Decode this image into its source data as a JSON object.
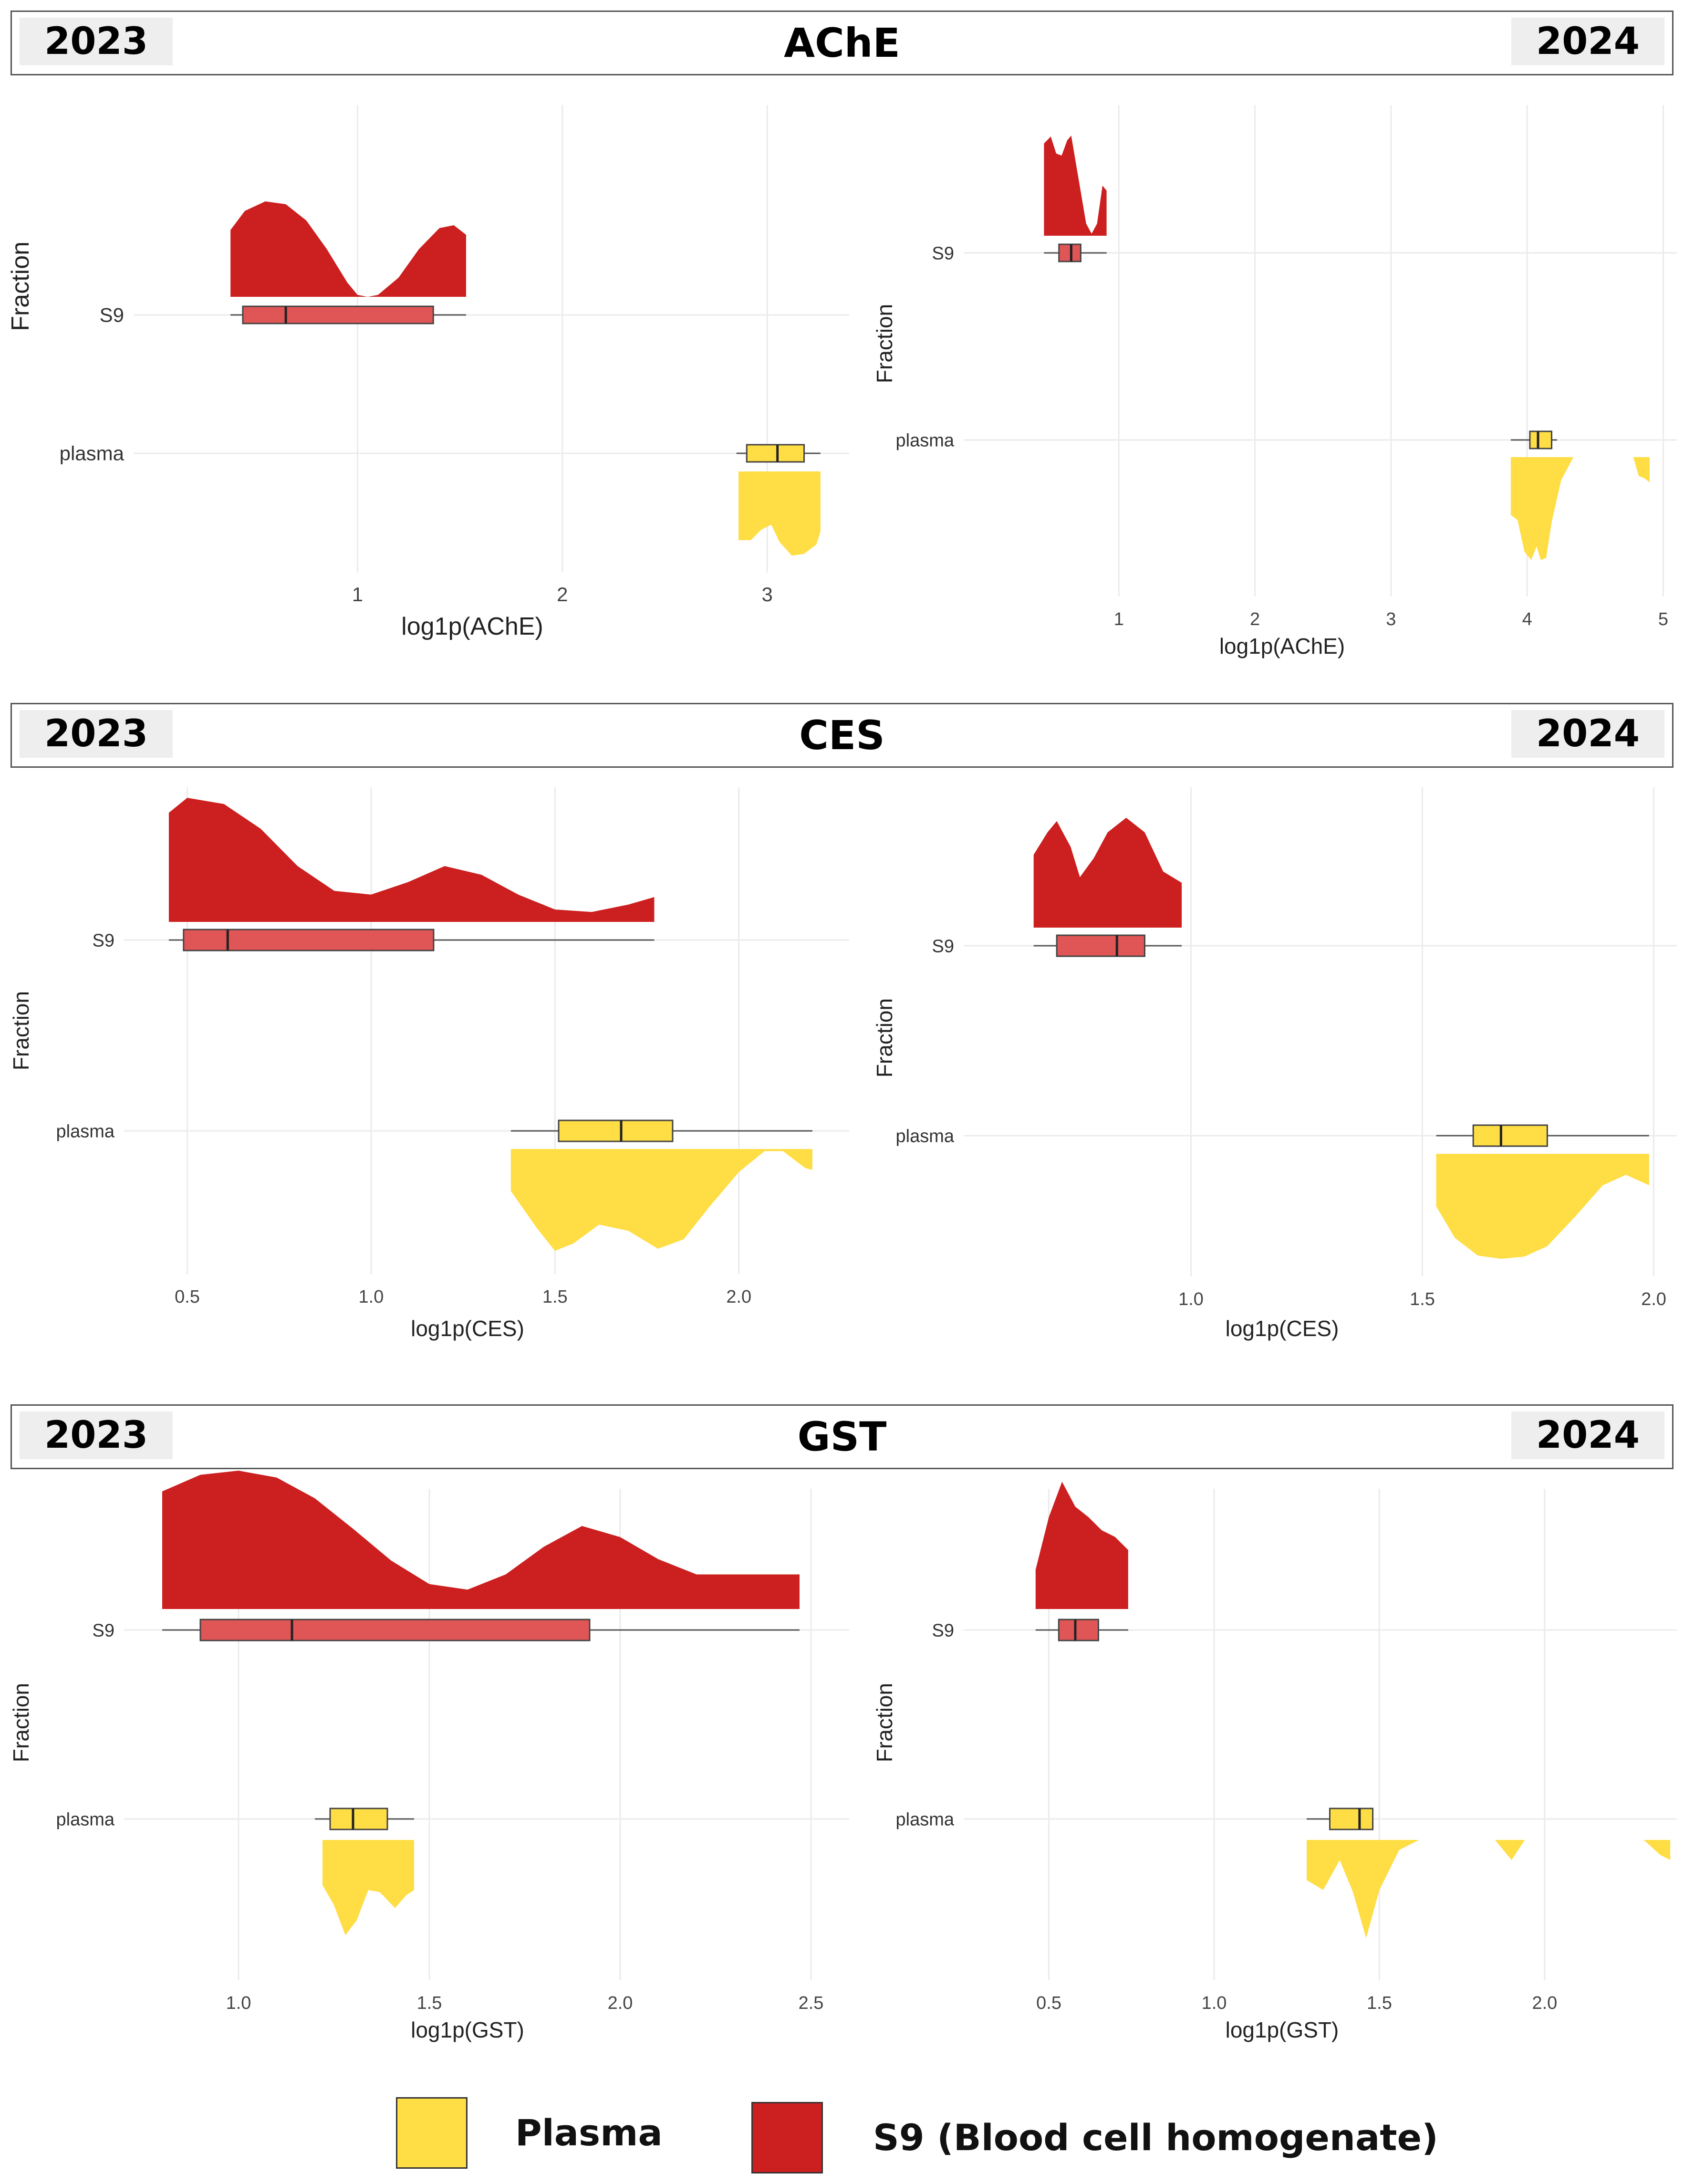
{
  "colors": {
    "plasma": "#FFDD44",
    "s9_density": "#CC1F1F",
    "s9_box": "#E05555",
    "whisker": "#555555",
    "grid": "#ebebeb"
  },
  "legend": {
    "plasma_label": "Plasma",
    "s9_label": "S9 (Blood cell homogenate)"
  },
  "chart_data": [
    {
      "panel": "ache-2023",
      "header": "AChE",
      "year_left": "2023",
      "year_right": "2024",
      "type": "raincloud",
      "xlabel": "log1p(AChE)",
      "ylabel": "Fraction",
      "xlim": [
        0.0,
        3.4
      ],
      "xticks": [
        1,
        2,
        3
      ],
      "tick_labels": [
        "1",
        "2",
        "3"
      ],
      "categories": [
        "S9",
        "plasma"
      ],
      "series": [
        {
          "name": "S9",
          "whisker": [
            0.38,
            1.53
          ],
          "box": [
            0.44,
            1.37
          ],
          "median": 0.65,
          "density": [
            [
              0.38,
              0.7
            ],
            [
              0.45,
              0.9
            ],
            [
              0.55,
              1.0
            ],
            [
              0.65,
              0.97
            ],
            [
              0.75,
              0.8
            ],
            [
              0.85,
              0.5
            ],
            [
              0.95,
              0.15
            ],
            [
              1.0,
              0.02
            ],
            [
              1.05,
              0.0
            ],
            [
              1.1,
              0.02
            ],
            [
              1.2,
              0.2
            ],
            [
              1.3,
              0.5
            ],
            [
              1.4,
              0.72
            ],
            [
              1.47,
              0.75
            ],
            [
              1.53,
              0.65
            ]
          ]
        },
        {
          "name": "plasma",
          "whisker": [
            2.85,
            3.26
          ],
          "box": [
            2.9,
            3.18
          ],
          "median": 3.05,
          "density": [
            [
              2.86,
              0.8
            ],
            [
              2.92,
              0.8
            ],
            [
              2.97,
              0.68
            ],
            [
              3.02,
              0.62
            ],
            [
              3.06,
              0.82
            ],
            [
              3.12,
              0.98
            ],
            [
              3.18,
              0.96
            ],
            [
              3.24,
              0.85
            ],
            [
              3.26,
              0.7
            ]
          ]
        }
      ]
    },
    {
      "panel": "ache-2024",
      "type": "raincloud",
      "xlabel": "log1p(AChE)",
      "ylabel": "Fraction",
      "xlim": [
        0.0,
        5.1
      ],
      "xticks": [
        1,
        2,
        3,
        4,
        5
      ],
      "tick_labels": [
        "1",
        "2",
        "3",
        "4",
        "5"
      ],
      "categories": [
        "S9",
        "plasma"
      ],
      "series": [
        {
          "name": "S9",
          "whisker": [
            0.45,
            0.91
          ],
          "box": [
            0.56,
            0.72
          ],
          "median": 0.65,
          "density": [
            [
              0.45,
              0.92
            ],
            [
              0.5,
              0.99
            ],
            [
              0.54,
              0.82
            ],
            [
              0.58,
              0.8
            ],
            [
              0.62,
              0.95
            ],
            [
              0.65,
              1.0
            ],
            [
              0.7,
              0.6
            ],
            [
              0.76,
              0.12
            ],
            [
              0.8,
              0.02
            ],
            [
              0.84,
              0.12
            ],
            [
              0.88,
              0.5
            ],
            [
              0.91,
              0.45
            ]
          ]
        },
        {
          "name": "plasma",
          "whisker": [
            3.88,
            4.22
          ],
          "box": [
            4.02,
            4.18
          ],
          "median": 4.08,
          "density": [
            [
              3.88,
              0.55
            ],
            [
              3.93,
              0.6
            ],
            [
              3.98,
              0.9
            ],
            [
              4.03,
              0.98
            ],
            [
              4.07,
              0.85
            ],
            [
              4.1,
              0.98
            ],
            [
              4.14,
              0.96
            ],
            [
              4.18,
              0.62
            ],
            [
              4.25,
              0.22
            ],
            [
              4.34,
              0.0
            ],
            [
              4.45,
              0.0
            ],
            [
              4.78,
              0.0
            ],
            [
              4.82,
              0.18
            ],
            [
              4.86,
              0.2
            ],
            [
              4.9,
              0.24
            ]
          ]
        }
      ]
    },
    {
      "panel": "ces-2023",
      "header": "CES",
      "year_left": "2023",
      "year_right": "2024",
      "type": "raincloud",
      "xlabel": "log1p(CES)",
      "ylabel": "Fraction",
      "xlim": [
        0.38,
        2.3
      ],
      "xticks": [
        0.5,
        1.0,
        1.5,
        2.0
      ],
      "tick_labels": [
        "0.5",
        "1.0",
        "1.5",
        "2.0"
      ],
      "categories": [
        "S9",
        "plasma"
      ],
      "series": [
        {
          "name": "S9",
          "whisker": [
            0.45,
            1.77
          ],
          "box": [
            0.49,
            1.17
          ],
          "median": 0.61,
          "density": [
            [
              0.45,
              0.88
            ],
            [
              0.5,
              1.0
            ],
            [
              0.6,
              0.95
            ],
            [
              0.7,
              0.75
            ],
            [
              0.8,
              0.45
            ],
            [
              0.9,
              0.25
            ],
            [
              1.0,
              0.22
            ],
            [
              1.1,
              0.32
            ],
            [
              1.2,
              0.45
            ],
            [
              1.3,
              0.38
            ],
            [
              1.4,
              0.22
            ],
            [
              1.5,
              0.1
            ],
            [
              1.6,
              0.08
            ],
            [
              1.7,
              0.14
            ],
            [
              1.77,
              0.2
            ]
          ]
        },
        {
          "name": "plasma",
          "whisker": [
            1.38,
            2.2
          ],
          "box": [
            1.51,
            1.82
          ],
          "median": 1.68,
          "density": [
            [
              1.38,
              0.4
            ],
            [
              1.45,
              0.75
            ],
            [
              1.5,
              0.97
            ],
            [
              1.55,
              0.9
            ],
            [
              1.62,
              0.72
            ],
            [
              1.7,
              0.78
            ],
            [
              1.78,
              0.95
            ],
            [
              1.85,
              0.86
            ],
            [
              1.92,
              0.55
            ],
            [
              2.0,
              0.22
            ],
            [
              2.07,
              0.02
            ],
            [
              2.12,
              0.02
            ],
            [
              2.18,
              0.18
            ],
            [
              2.2,
              0.2
            ]
          ]
        }
      ]
    },
    {
      "panel": "ces-2024",
      "type": "raincloud",
      "xlabel": "log1p(CES)",
      "ylabel": "Fraction",
      "xlim": [
        0.55,
        2.05
      ],
      "xticks": [
        1.0,
        1.5,
        2.0
      ],
      "tick_labels": [
        "1.0",
        "1.5",
        "2.0"
      ],
      "categories": [
        "S9",
        "plasma"
      ],
      "series": [
        {
          "name": "S9",
          "whisker": [
            0.66,
            0.98
          ],
          "box": [
            0.71,
            0.9
          ],
          "median": 0.84,
          "density": [
            [
              0.66,
              0.65
            ],
            [
              0.69,
              0.85
            ],
            [
              0.71,
              0.95
            ],
            [
              0.74,
              0.72
            ],
            [
              0.76,
              0.45
            ],
            [
              0.79,
              0.62
            ],
            [
              0.82,
              0.85
            ],
            [
              0.86,
              0.98
            ],
            [
              0.9,
              0.85
            ],
            [
              0.94,
              0.5
            ],
            [
              0.98,
              0.4
            ]
          ]
        },
        {
          "name": "plasma",
          "whisker": [
            1.53,
            1.99
          ],
          "box": [
            1.61,
            1.77
          ],
          "median": 1.67,
          "density": [
            [
              1.53,
              0.5
            ],
            [
              1.57,
              0.8
            ],
            [
              1.62,
              0.97
            ],
            [
              1.67,
              1.0
            ],
            [
              1.72,
              0.98
            ],
            [
              1.77,
              0.88
            ],
            [
              1.83,
              0.6
            ],
            [
              1.89,
              0.3
            ],
            [
              1.94,
              0.2
            ],
            [
              1.99,
              0.3
            ]
          ]
        }
      ]
    },
    {
      "panel": "gst-2023",
      "header": "GST",
      "year_left": "2023",
      "year_right": "2024",
      "type": "raincloud",
      "xlabel": "log1p(GST)",
      "ylabel": "Fraction",
      "xlim": [
        0.75,
        2.6
      ],
      "xticks": [
        1.0,
        1.5,
        2.0,
        2.5
      ],
      "tick_labels": [
        "1.0",
        "1.5",
        "2.0",
        "2.5"
      ],
      "categories": [
        "S9",
        "plasma"
      ],
      "series": [
        {
          "name": "S9",
          "whisker": [
            0.8,
            2.47
          ],
          "box": [
            0.9,
            1.92
          ],
          "median": 1.14,
          "density": [
            [
              0.8,
              0.85
            ],
            [
              0.9,
              0.97
            ],
            [
              1.0,
              1.0
            ],
            [
              1.1,
              0.95
            ],
            [
              1.2,
              0.8
            ],
            [
              1.3,
              0.58
            ],
            [
              1.4,
              0.35
            ],
            [
              1.5,
              0.18
            ],
            [
              1.6,
              0.14
            ],
            [
              1.7,
              0.25
            ],
            [
              1.8,
              0.45
            ],
            [
              1.9,
              0.6
            ],
            [
              2.0,
              0.52
            ],
            [
              2.1,
              0.36
            ],
            [
              2.2,
              0.25
            ],
            [
              2.35,
              0.25
            ],
            [
              2.47,
              0.25
            ]
          ]
        },
        {
          "name": "plasma",
          "whisker": [
            1.2,
            1.46
          ],
          "box": [
            1.24,
            1.39
          ],
          "median": 1.3,
          "density": [
            [
              1.22,
              0.45
            ],
            [
              1.25,
              0.65
            ],
            [
              1.28,
              0.95
            ],
            [
              1.31,
              0.8
            ],
            [
              1.34,
              0.5
            ],
            [
              1.37,
              0.52
            ],
            [
              1.41,
              0.68
            ],
            [
              1.44,
              0.55
            ],
            [
              1.46,
              0.5
            ]
          ]
        }
      ]
    },
    {
      "panel": "gst-2024",
      "type": "raincloud",
      "xlabel": "log1p(GST)",
      "ylabel": "Fraction",
      "xlim": [
        0.3,
        2.4
      ],
      "xticks": [
        0.5,
        1.0,
        1.5,
        2.0
      ],
      "tick_labels": [
        "0.5",
        "1.0",
        "1.5",
        "2.0"
      ],
      "categories": [
        "S9",
        "plasma"
      ],
      "series": [
        {
          "name": "S9",
          "whisker": [
            0.46,
            0.74
          ],
          "box": [
            0.53,
            0.65
          ],
          "median": 0.58,
          "density": [
            [
              0.46,
              0.3
            ],
            [
              0.5,
              0.7
            ],
            [
              0.54,
              0.97
            ],
            [
              0.58,
              0.78
            ],
            [
              0.62,
              0.7
            ],
            [
              0.66,
              0.6
            ],
            [
              0.7,
              0.55
            ],
            [
              0.74,
              0.45
            ]
          ]
        },
        {
          "name": "plasma",
          "whisker": [
            1.28,
            1.48
          ],
          "box": [
            1.35,
            1.48
          ],
          "median": 1.44,
          "density": [
            [
              1.28,
              0.4
            ],
            [
              1.33,
              0.5
            ],
            [
              1.38,
              0.2
            ],
            [
              1.42,
              0.52
            ],
            [
              1.46,
              0.98
            ],
            [
              1.5,
              0.5
            ],
            [
              1.56,
              0.1
            ],
            [
              1.62,
              0.0
            ],
            [
              1.85,
              0.0
            ],
            [
              1.9,
              0.2
            ],
            [
              1.94,
              0.0
            ],
            [
              2.3,
              0.0
            ],
            [
              2.35,
              0.15
            ],
            [
              2.38,
              0.2
            ]
          ]
        }
      ]
    }
  ]
}
